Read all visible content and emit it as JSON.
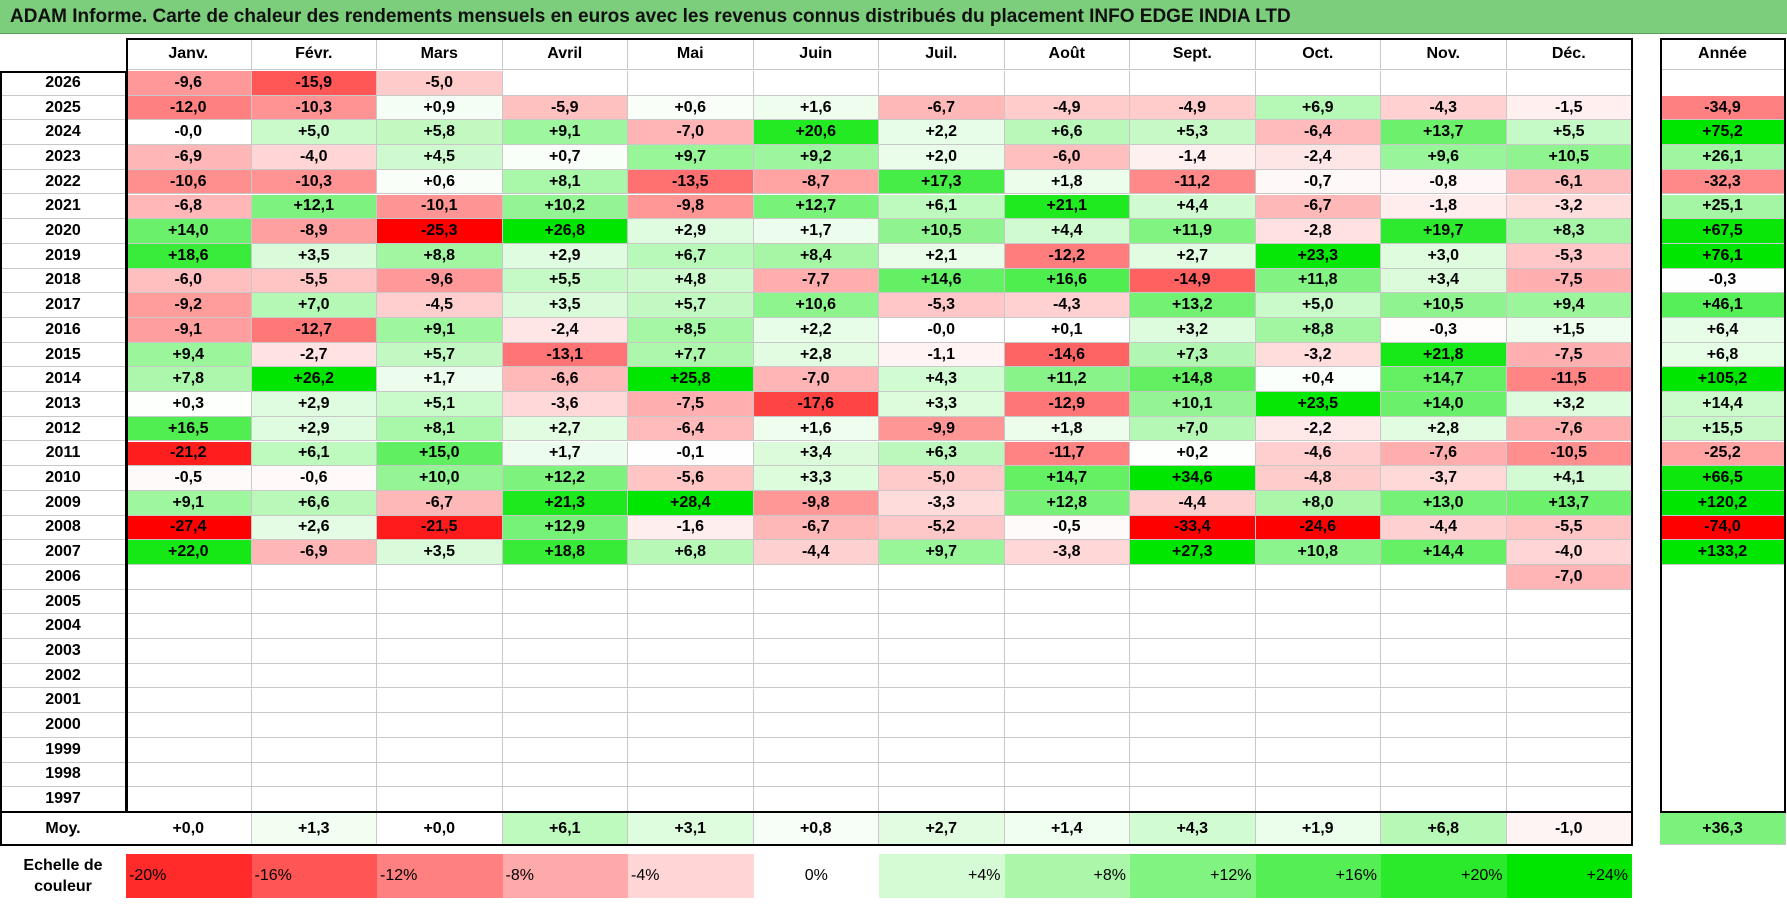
{
  "title": "ADAM Informe. Carte de chaleur des rendements mensuels en euros avec les revenus connus distribués du placement INFO EDGE INDIA LTD",
  "months": [
    "Janv.",
    "Févr.",
    "Mars",
    "Avril",
    "Mai",
    "Juin",
    "Juil.",
    "Août",
    "Sept.",
    "Oct.",
    "Nov.",
    "Déc."
  ],
  "year_header": "Année",
  "avg_label": "Moy.",
  "scale_label_line1": "Echelle de",
  "scale_label_line2": "couleur",
  "colors": {
    "negative": "#ff0000",
    "positive": "#00e600",
    "neutral": "#ffffff",
    "title_bg": "#7ccd7c"
  },
  "chart_data": {
    "type": "heatmap",
    "title": "ADAM Informe. Carte de chaleur des rendements mensuels en euros avec les revenus connus distribués du placement INFO EDGE INDIA LTD",
    "columns": [
      "Janv.",
      "Févr.",
      "Mars",
      "Avril",
      "Mai",
      "Juin",
      "Juil.",
      "Août",
      "Sept.",
      "Oct.",
      "Nov.",
      "Déc."
    ],
    "rows": [
      {
        "year": "2026",
        "values": [
          "-9,6",
          "-15,9",
          "-5,0",
          "",
          "",
          "",
          "",
          "",
          "",
          "",
          "",
          ""
        ],
        "annual": ""
      },
      {
        "year": "2025",
        "values": [
          "-12,0",
          "-10,3",
          "+0,9",
          "-5,9",
          "+0,6",
          "+1,6",
          "-6,7",
          "-4,9",
          "-4,9",
          "+6,9",
          "-4,3",
          "-1,5"
        ],
        "annual": "-34,9"
      },
      {
        "year": "2024",
        "values": [
          "-0,0",
          "+5,0",
          "+5,8",
          "+9,1",
          "-7,0",
          "+20,6",
          "+2,2",
          "+6,6",
          "+5,3",
          "-6,4",
          "+13,7",
          "+5,5"
        ],
        "annual": "+75,2"
      },
      {
        "year": "2023",
        "values": [
          "-6,9",
          "-4,0",
          "+4,5",
          "+0,7",
          "+9,7",
          "+9,2",
          "+2,0",
          "-6,0",
          "-1,4",
          "-2,4",
          "+9,6",
          "+10,5"
        ],
        "annual": "+26,1"
      },
      {
        "year": "2022",
        "values": [
          "-10,6",
          "-10,3",
          "+0,6",
          "+8,1",
          "-13,5",
          "-8,7",
          "+17,3",
          "+1,8",
          "-11,2",
          "-0,7",
          "-0,8",
          "-6,1"
        ],
        "annual": "-32,3"
      },
      {
        "year": "2021",
        "values": [
          "-6,8",
          "+12,1",
          "-10,1",
          "+10,2",
          "-9,8",
          "+12,7",
          "+6,1",
          "+21,1",
          "+4,4",
          "-6,7",
          "-1,8",
          "-3,2"
        ],
        "annual": "+25,1"
      },
      {
        "year": "2020",
        "values": [
          "+14,0",
          "-8,9",
          "-25,3",
          "+26,8",
          "+2,9",
          "+1,7",
          "+10,5",
          "+4,4",
          "+11,9",
          "-2,8",
          "+19,7",
          "+8,3"
        ],
        "annual": "+67,5"
      },
      {
        "year": "2019",
        "values": [
          "+18,6",
          "+3,5",
          "+8,8",
          "+2,9",
          "+6,7",
          "+8,4",
          "+2,1",
          "-12,2",
          "+2,7",
          "+23,3",
          "+3,0",
          "-5,3"
        ],
        "annual": "+76,1"
      },
      {
        "year": "2018",
        "values": [
          "-6,0",
          "-5,5",
          "-9,6",
          "+5,5",
          "+4,8",
          "-7,7",
          "+14,6",
          "+16,6",
          "-14,9",
          "+11,8",
          "+3,4",
          "-7,5"
        ],
        "annual": "-0,3"
      },
      {
        "year": "2017",
        "values": [
          "-9,2",
          "+7,0",
          "-4,5",
          "+3,5",
          "+5,7",
          "+10,6",
          "-5,3",
          "-4,3",
          "+13,2",
          "+5,0",
          "+10,5",
          "+9,4"
        ],
        "annual": "+46,1"
      },
      {
        "year": "2016",
        "values": [
          "-9,1",
          "-12,7",
          "+9,1",
          "-2,4",
          "+8,5",
          "+2,2",
          "-0,0",
          "+0,1",
          "+3,2",
          "+8,8",
          "-0,3",
          "+1,5"
        ],
        "annual": "+6,4"
      },
      {
        "year": "2015",
        "values": [
          "+9,4",
          "-2,7",
          "+5,7",
          "-13,1",
          "+7,7",
          "+2,8",
          "-1,1",
          "-14,6",
          "+7,3",
          "-3,2",
          "+21,8",
          "-7,5"
        ],
        "annual": "+6,8"
      },
      {
        "year": "2014",
        "values": [
          "+7,8",
          "+26,2",
          "+1,7",
          "-6,6",
          "+25,8",
          "-7,0",
          "+4,3",
          "+11,2",
          "+14,8",
          "+0,4",
          "+14,7",
          "-11,5"
        ],
        "annual": "+105,2"
      },
      {
        "year": "2013",
        "values": [
          "+0,3",
          "+2,9",
          "+5,1",
          "-3,6",
          "-7,5",
          "-17,6",
          "+3,3",
          "-12,9",
          "+10,1",
          "+23,5",
          "+14,0",
          "+3,2"
        ],
        "annual": "+14,4"
      },
      {
        "year": "2012",
        "values": [
          "+16,5",
          "+2,9",
          "+8,1",
          "+2,7",
          "-6,4",
          "+1,6",
          "-9,9",
          "+1,8",
          "+7,0",
          "-2,2",
          "+2,8",
          "-7,6"
        ],
        "annual": "+15,5"
      },
      {
        "year": "2011",
        "values": [
          "-21,2",
          "+6,1",
          "+15,0",
          "+1,7",
          "-0,1",
          "+3,4",
          "+6,3",
          "-11,7",
          "+0,2",
          "-4,6",
          "-7,6",
          "-10,5"
        ],
        "annual": "-25,2"
      },
      {
        "year": "2010",
        "values": [
          "-0,5",
          "-0,6",
          "+10,0",
          "+12,2",
          "-5,6",
          "+3,3",
          "-5,0",
          "+14,7",
          "+34,6",
          "-4,8",
          "-3,7",
          "+4,1"
        ],
        "annual": "+66,5"
      },
      {
        "year": "2009",
        "values": [
          "+9,1",
          "+6,6",
          "-6,7",
          "+21,3",
          "+28,4",
          "-9,8",
          "-3,3",
          "+12,8",
          "-4,4",
          "+8,0",
          "+13,0",
          "+13,7"
        ],
        "annual": "+120,2"
      },
      {
        "year": "2008",
        "values": [
          "-27,4",
          "+2,6",
          "-21,5",
          "+12,9",
          "-1,6",
          "-6,7",
          "-5,2",
          "-0,5",
          "-33,4",
          "-24,6",
          "-4,4",
          "-5,5"
        ],
        "annual": "-74,0"
      },
      {
        "year": "2007",
        "values": [
          "+22,0",
          "-6,9",
          "+3,5",
          "+18,8",
          "+6,8",
          "-4,4",
          "+9,7",
          "-3,8",
          "+27,3",
          "+10,8",
          "+14,4",
          "-4,0"
        ],
        "annual": "+133,2"
      },
      {
        "year": "2006",
        "values": [
          "",
          "",
          "",
          "",
          "",
          "",
          "",
          "",
          "",
          "",
          "",
          "-7,0"
        ],
        "annual": ""
      },
      {
        "year": "2005",
        "values": [
          "",
          "",
          "",
          "",
          "",
          "",
          "",
          "",
          "",
          "",
          "",
          ""
        ],
        "annual": ""
      },
      {
        "year": "2004",
        "values": [
          "",
          "",
          "",
          "",
          "",
          "",
          "",
          "",
          "",
          "",
          "",
          ""
        ],
        "annual": ""
      },
      {
        "year": "2003",
        "values": [
          "",
          "",
          "",
          "",
          "",
          "",
          "",
          "",
          "",
          "",
          "",
          ""
        ],
        "annual": ""
      },
      {
        "year": "2002",
        "values": [
          "",
          "",
          "",
          "",
          "",
          "",
          "",
          "",
          "",
          "",
          "",
          ""
        ],
        "annual": ""
      },
      {
        "year": "2001",
        "values": [
          "",
          "",
          "",
          "",
          "",
          "",
          "",
          "",
          "",
          "",
          "",
          ""
        ],
        "annual": ""
      },
      {
        "year": "2000",
        "values": [
          "",
          "",
          "",
          "",
          "",
          "",
          "",
          "",
          "",
          "",
          "",
          ""
        ],
        "annual": ""
      },
      {
        "year": "1999",
        "values": [
          "",
          "",
          "",
          "",
          "",
          "",
          "",
          "",
          "",
          "",
          "",
          ""
        ],
        "annual": ""
      },
      {
        "year": "1998",
        "values": [
          "",
          "",
          "",
          "",
          "",
          "",
          "",
          "",
          "",
          "",
          "",
          ""
        ],
        "annual": ""
      },
      {
        "year": "1997",
        "values": [
          "",
          "",
          "",
          "",
          "",
          "",
          "",
          "",
          "",
          "",
          "",
          ""
        ],
        "annual": ""
      }
    ],
    "average": {
      "values": [
        "+0,0",
        "+1,3",
        "+0,0",
        "+6,1",
        "+3,1",
        "+0,8",
        "+2,7",
        "+1,4",
        "+4,3",
        "+1,9",
        "+6,8",
        "-1,0"
      ],
      "annual": "+36,3"
    },
    "color_scale": [
      {
        "value": -20,
        "label": "-20%"
      },
      {
        "value": -16,
        "label": "-16%"
      },
      {
        "value": -12,
        "label": "-12%"
      },
      {
        "value": -8,
        "label": "-8%"
      },
      {
        "value": -4,
        "label": "-4%"
      },
      {
        "value": 0,
        "label": "0%"
      },
      {
        "value": 4,
        "label": "+4%"
      },
      {
        "value": 8,
        "label": "+8%"
      },
      {
        "value": 12,
        "label": "+12%"
      },
      {
        "value": 16,
        "label": "+16%"
      },
      {
        "value": 20,
        "label": "+20%"
      },
      {
        "value": 24,
        "label": "+24%"
      }
    ]
  }
}
